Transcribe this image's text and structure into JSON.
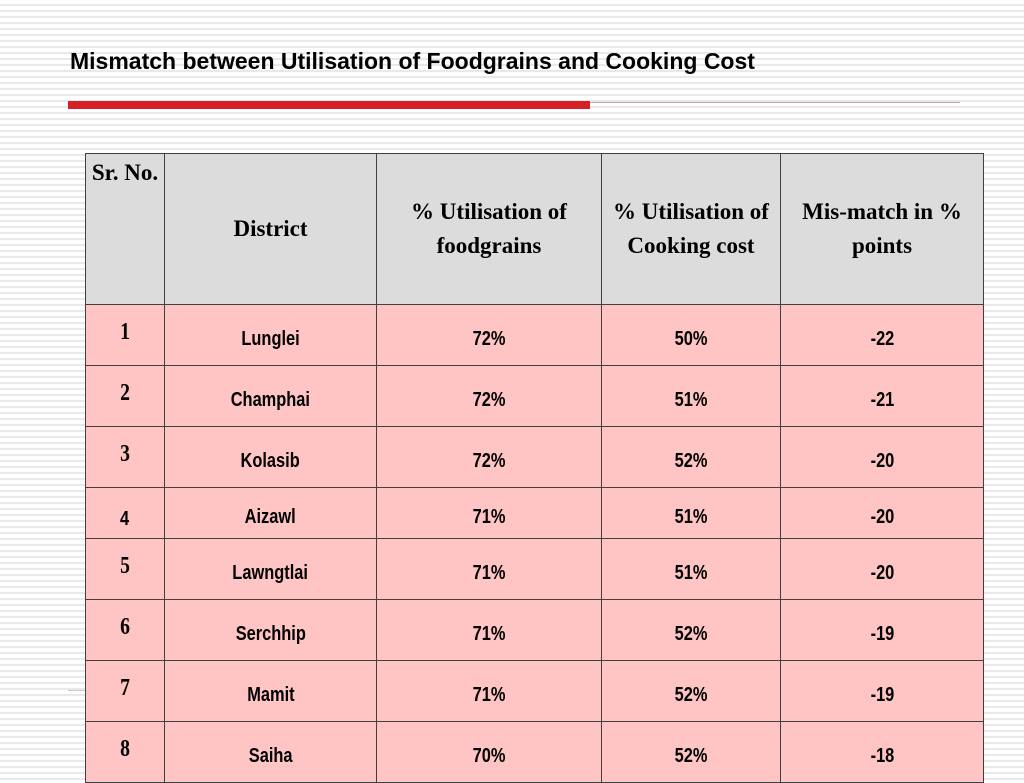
{
  "slide": {
    "title": "Mismatch between Utilisation of Foodgrains and Cooking Cost"
  },
  "colors": {
    "accent_rule": "#d71f26",
    "header_fill": "#dcdcdc",
    "row_fill": "#ffc4c4"
  },
  "table": {
    "headers": [
      "Sr. No.",
      "District",
      "% Utilisation of foodgrains",
      "% Utilisation of Cooking cost",
      "Mis-match in % points"
    ],
    "rows": [
      {
        "sr": "1",
        "district": "Lunglei",
        "foodgrains": "72%",
        "cooking": "50%",
        "mismatch": "-22"
      },
      {
        "sr": "2",
        "district": "Champhai",
        "foodgrains": "72%",
        "cooking": "51%",
        "mismatch": "-21"
      },
      {
        "sr": "3",
        "district": "Kolasib",
        "foodgrains": "72%",
        "cooking": "52%",
        "mismatch": "-20"
      },
      {
        "sr": "4",
        "district": "Aizawl",
        "foodgrains": "71%",
        "cooking": "51%",
        "mismatch": "-20"
      },
      {
        "sr": "5",
        "district": "Lawngtlai",
        "foodgrains": "71%",
        "cooking": "51%",
        "mismatch": "-20"
      },
      {
        "sr": "6",
        "district": "Serchhip",
        "foodgrains": "71%",
        "cooking": "52%",
        "mismatch": "-19"
      },
      {
        "sr": "7",
        "district": "Mamit",
        "foodgrains": "71%",
        "cooking": "52%",
        "mismatch": "-19"
      },
      {
        "sr": "8",
        "district": "Saiha",
        "foodgrains": "70%",
        "cooking": "52%",
        "mismatch": "-18"
      }
    ]
  }
}
